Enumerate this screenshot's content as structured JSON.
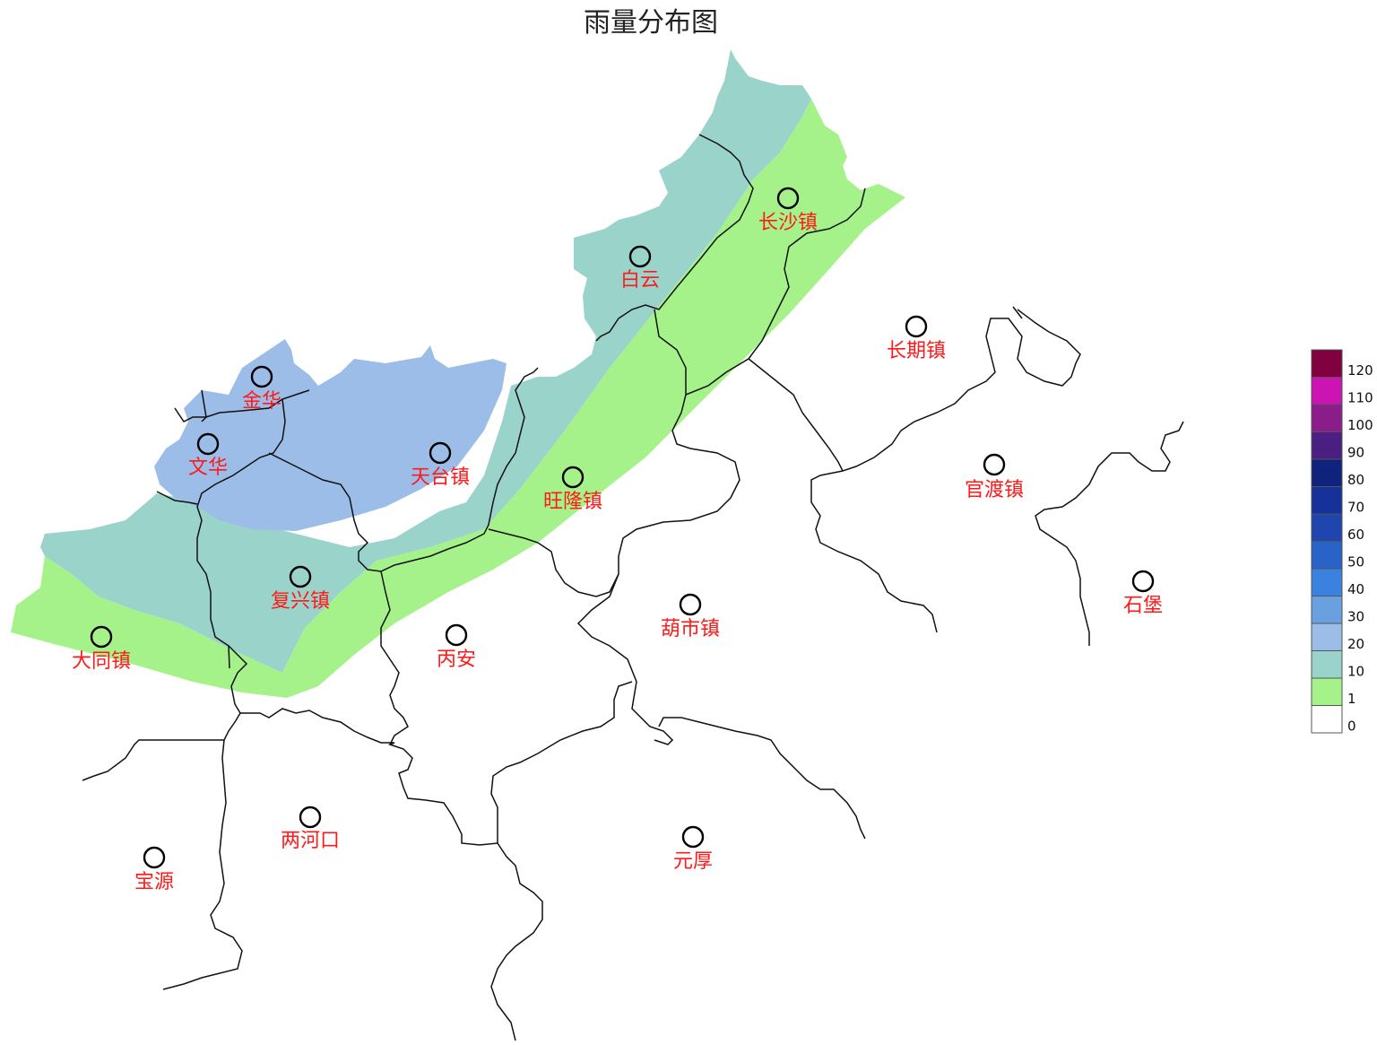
{
  "title": "雨量分布图",
  "towns": [
    {
      "name": "长沙镇"
    },
    {
      "name": "白云"
    },
    {
      "name": "长期镇"
    },
    {
      "name": "金华"
    },
    {
      "name": "文华"
    },
    {
      "name": "天台镇"
    },
    {
      "name": "旺隆镇"
    },
    {
      "name": "官渡镇"
    },
    {
      "name": "复兴镇"
    },
    {
      "name": "石堡"
    },
    {
      "name": "葫市镇"
    },
    {
      "name": "大同镇"
    },
    {
      "name": "丙安"
    },
    {
      "name": "两河口"
    },
    {
      "name": "元厚"
    },
    {
      "name": "宝源"
    }
  ],
  "legend": {
    "levels": [
      "0",
      "1",
      "10",
      "20",
      "30",
      "40",
      "50",
      "60",
      "70",
      "80",
      "90",
      "100",
      "110",
      "120"
    ],
    "colors": [
      "#ffffff",
      "#a5f28b",
      "#9ad3ca",
      "#9cbde8",
      "#6a9fe0",
      "#3b82e0",
      "#2a63c8",
      "#1f45ae",
      "#16319a",
      "#0f237d",
      "#4b1f82",
      "#8a1d8a",
      "#cb14b1",
      "#800040"
    ]
  },
  "zones": {
    "green": "#a5f28b",
    "teal": "#9ad3ca",
    "blue": "#9cbde8"
  }
}
